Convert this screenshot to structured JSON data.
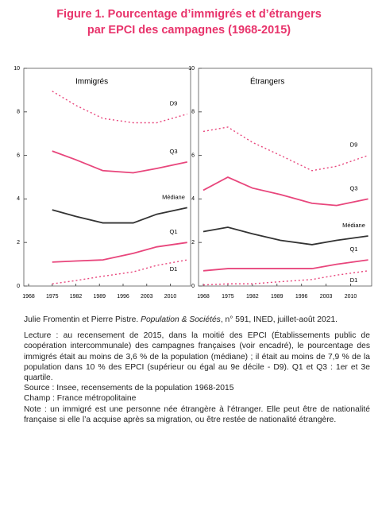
{
  "header": {
    "title_lines": [
      "Figure 1. Pourcentage d’immigrés et d’étrangers",
      "par EPCI des campagnes (1968-2015)"
    ]
  },
  "chart_data": [
    {
      "type": "line",
      "title": "Immigrés",
      "xlim": [
        1968,
        2016
      ],
      "xticks": [
        1968,
        1975,
        1982,
        1989,
        1996,
        2003,
        2010
      ],
      "ylim": [
        0,
        10
      ],
      "yticks": [
        0,
        2,
        4,
        6,
        8,
        10
      ],
      "x": [
        1975,
        1982,
        1990,
        1999,
        2006,
        2015
      ],
      "series": [
        {
          "name": "D9",
          "color": "#e8467c",
          "dash": true,
          "values": [
            8.95,
            8.3,
            7.7,
            7.5,
            7.5,
            7.9
          ]
        },
        {
          "name": "Q3",
          "color": "#e8467c",
          "dash": false,
          "values": [
            6.2,
            5.8,
            5.3,
            5.2,
            5.4,
            5.7
          ]
        },
        {
          "name": "Médiane",
          "color": "#333333",
          "dash": false,
          "values": [
            3.5,
            3.2,
            2.9,
            2.9,
            3.3,
            3.6
          ]
        },
        {
          "name": "Q1",
          "color": "#e8467c",
          "dash": false,
          "values": [
            1.1,
            1.15,
            1.2,
            1.5,
            1.8,
            2.0
          ]
        },
        {
          "name": "D1",
          "color": "#e8467c",
          "dash": true,
          "values": [
            0.1,
            0.25,
            0.45,
            0.65,
            0.95,
            1.2
          ]
        }
      ]
    },
    {
      "type": "line",
      "title": "Étrangers",
      "xlim": [
        1968,
        2016
      ],
      "xticks": [
        1968,
        1975,
        1982,
        1989,
        1996,
        2003,
        2010
      ],
      "ylim": [
        0,
        10
      ],
      "yticks": [
        0,
        2,
        4,
        6,
        8,
        10
      ],
      "x": [
        1968,
        1975,
        1982,
        1990,
        1999,
        2006,
        2015
      ],
      "series": [
        {
          "name": "D9",
          "color": "#e8467c",
          "dash": true,
          "values": [
            7.1,
            7.3,
            6.6,
            6.0,
            5.3,
            5.5,
            6.0
          ]
        },
        {
          "name": "Q3",
          "color": "#e8467c",
          "dash": false,
          "values": [
            4.4,
            5.0,
            4.5,
            4.2,
            3.8,
            3.7,
            4.0
          ]
        },
        {
          "name": "Médiane",
          "color": "#333333",
          "dash": false,
          "values": [
            2.5,
            2.7,
            2.4,
            2.1,
            1.9,
            2.1,
            2.3
          ]
        },
        {
          "name": "Q1",
          "color": "#e8467c",
          "dash": false,
          "values": [
            0.7,
            0.8,
            0.8,
            0.8,
            0.8,
            1.0,
            1.2
          ]
        },
        {
          "name": "D1",
          "color": "#e8467c",
          "dash": true,
          "values": [
            0.05,
            0.1,
            0.1,
            0.2,
            0.3,
            0.5,
            0.7
          ]
        }
      ]
    }
  ],
  "document": {
    "author": [
      "Julie Fromentin et Pierre Pistre. ",
      "Population & Sociétés",
      ", n° 591, INED, juillet-août 2021."
    ],
    "lecture": "Lecture : au recensement de 2015, dans la moitié des EPCI (Établissements public de coopération intercommunale) des campagnes françaises (voir encadré), le pourcentage des immigrés était au moins de 3,6 % de la population (médiane) ; il était au moins de 7,9 % de la population dans 10 % des EPCI (supérieur ou égal au 9e décile - D9). Q1 et Q3 : 1er et 3e quartile.",
    "source": "Source : Insee, recensements de la population 1968-2015",
    "champ": "Champ : France métropolitaine",
    "note": "Note : un immigré est une personne née étrangère à l’étranger. Elle peut être de nationalité française si elle l’a acquise après sa migration, ou être restée de nationalité étrangère."
  }
}
